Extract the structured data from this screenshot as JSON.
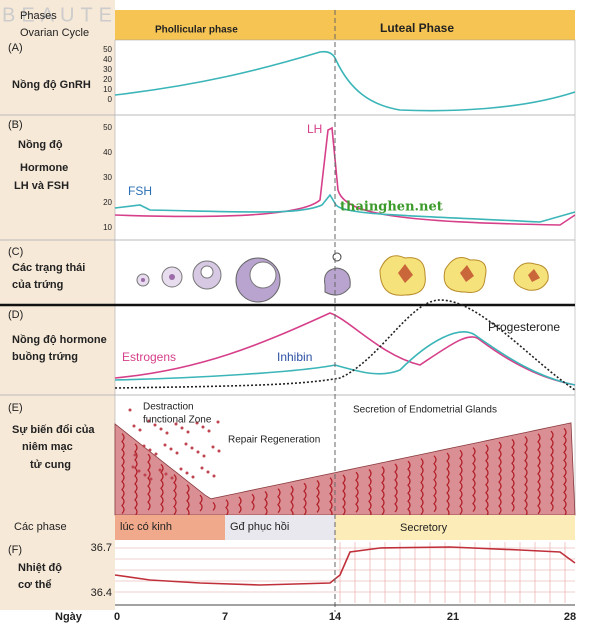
{
  "watermark": "BEAUTE",
  "header": {
    "phases": "Phases",
    "ovarian_cycle": "Ovarian Cycle",
    "follicular": "Phollicular phase",
    "luteal": "Luteal Phase"
  },
  "panel_a": {
    "letter": "(A)",
    "label": "Nồng độ GnRH",
    "ticks": [
      "50",
      "40",
      "30",
      "20",
      "10",
      "0"
    ]
  },
  "panel_b": {
    "letter": "(B)",
    "label": [
      "Nồng độ",
      "Hormone",
      "LH và FSH"
    ],
    "ticks": [
      "50",
      "40",
      "30",
      "20",
      "10"
    ],
    "lh": "LH",
    "fsh": "FSH",
    "source": "thainghen.net"
  },
  "panel_c": {
    "letter": "(C)",
    "label": [
      "Các trạng thái",
      "của trứng"
    ]
  },
  "panel_d": {
    "letter": "(D)",
    "label": [
      "Nồng độ hormone",
      "buồng trứng"
    ],
    "estrogens": "Estrogens",
    "inhibin": "Inhibin",
    "progesterone": "Progesterone"
  },
  "panel_e": {
    "letter": "(E)",
    "label": [
      "Sự biến đổi của",
      "niêm mạc",
      "tử cung"
    ],
    "zone": [
      "Destraction",
      "functional Zone"
    ],
    "repair": "Repair Regeneration",
    "secretion": "Secretion of Endometrial Glands"
  },
  "phases": {
    "label": "Các phase",
    "menses": "lúc có kinh",
    "recovery": "Gđ phục hồi",
    "secretory": "Secretory"
  },
  "panel_f": {
    "letter": "(F)",
    "label": [
      "Nhiệt độ",
      "cơ thể"
    ],
    "ticks": [
      "36.7",
      "36.4"
    ]
  },
  "days": {
    "label": "Ngày",
    "ticks": [
      "0",
      "7",
      "14",
      "21",
      "28"
    ]
  }
}
